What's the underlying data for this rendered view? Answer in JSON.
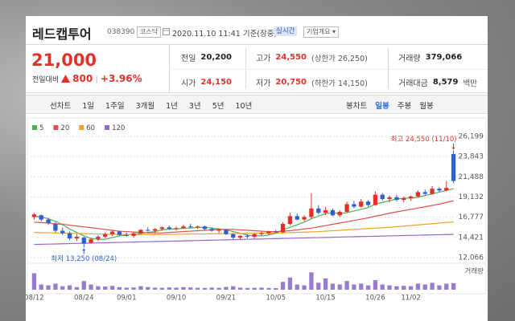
{
  "header": {
    "name": "레드캡투어",
    "code": "038390",
    "market": "코스닥",
    "datetime": "2020.11.10 11:41",
    "basis": "기준(장중)",
    "realtime": "실시간",
    "profile": "기업개요"
  },
  "quote": {
    "price": "21,000",
    "change_label": "전일대비",
    "change": "800",
    "rate": "+3.96%"
  },
  "stats": {
    "rows": [
      [
        {
          "label": "전일",
          "value": "20,200"
        },
        {
          "label": "고가",
          "value": "24,550",
          "note": "(상한가 26,250)"
        },
        {
          "label": "거래량",
          "value": "379,066"
        }
      ],
      [
        {
          "label": "시가",
          "value": "24,150"
        },
        {
          "label": "저가",
          "value": "20,750",
          "note": "(하한가 14,150)"
        },
        {
          "label": "거래대금",
          "value": "8,579",
          "unit": "백만"
        }
      ]
    ]
  },
  "tabs": {
    "left": [
      {
        "label": "선차트"
      },
      {
        "label": "1일"
      },
      {
        "label": "1주일"
      },
      {
        "label": "3개월"
      },
      {
        "label": "1년"
      },
      {
        "label": "3년"
      },
      {
        "label": "5년"
      },
      {
        "label": "10년"
      }
    ],
    "right": [
      {
        "label": "봉차트"
      },
      {
        "label": "일봉",
        "active": true
      },
      {
        "label": "주봉"
      },
      {
        "label": "월봉"
      }
    ]
  },
  "chart_data": {
    "type": "candlestick",
    "categories": [
      "08/12",
      null,
      null,
      null,
      null,
      null,
      null,
      "08/24",
      null,
      null,
      null,
      null,
      null,
      "09/01",
      null,
      null,
      null,
      null,
      null,
      null,
      "09/10",
      null,
      null,
      null,
      null,
      null,
      null,
      "09/21",
      null,
      null,
      null,
      null,
      null,
      null,
      "10/05",
      null,
      null,
      null,
      null,
      null,
      null,
      "10/15",
      null,
      null,
      null,
      null,
      null,
      null,
      "10/26",
      null,
      null,
      null,
      null,
      "11/02",
      null,
      null,
      null,
      null,
      null,
      null
    ],
    "open": [
      16800,
      17000,
      16500,
      16000,
      15200,
      14900,
      14300,
      14400,
      13800,
      14200,
      14500,
      14800,
      15100,
      14700,
      14600,
      14900,
      15300,
      15200,
      15400,
      15600,
      15400,
      15500,
      15700,
      15600,
      15700,
      15400,
      15200,
      15300,
      14800,
      14400,
      14600,
      14500,
      14800,
      14900,
      15100,
      15000,
      16000,
      16900,
      16500,
      16800,
      17800,
      17300,
      17600,
      17000,
      17400,
      18300,
      18000,
      18600,
      18200,
      19400,
      18900,
      19100,
      18800,
      19000,
      19200,
      19700,
      19500,
      20100,
      19900,
      24150
    ],
    "high": [
      17300,
      17100,
      16700,
      16200,
      15600,
      15100,
      14800,
      14500,
      14400,
      14700,
      15000,
      15300,
      15200,
      15000,
      15000,
      15400,
      15600,
      15500,
      15700,
      15800,
      15700,
      15900,
      16000,
      15800,
      15800,
      15600,
      15500,
      15400,
      14900,
      14700,
      14800,
      14900,
      15100,
      15200,
      15300,
      16200,
      17300,
      17200,
      17000,
      19600,
      18200,
      18000,
      17800,
      17600,
      18600,
      18700,
      18900,
      18800,
      19800,
      19600,
      19300,
      19400,
      19200,
      19300,
      19900,
      20000,
      20400,
      20300,
      21000,
      24550
    ],
    "low": [
      16500,
      16300,
      15900,
      15000,
      14700,
      14100,
      14000,
      13250,
      13700,
      14000,
      14300,
      14600,
      14600,
      14500,
      14400,
      14800,
      15100,
      14900,
      15200,
      15300,
      15200,
      15400,
      15500,
      15400,
      15300,
      15100,
      14900,
      14700,
      14200,
      14200,
      14300,
      14300,
      14600,
      14700,
      14900,
      15000,
      15800,
      16400,
      16300,
      16600,
      17100,
      17000,
      16900,
      16800,
      17300,
      17800,
      17900,
      18000,
      18100,
      18700,
      18500,
      18600,
      18500,
      18700,
      19100,
      19300,
      19400,
      19700,
      19800,
      20750
    ],
    "close": [
      17100,
      16500,
      16100,
      15200,
      14900,
      14300,
      14500,
      13700,
      14200,
      14500,
      14800,
      15100,
      14700,
      14600,
      14900,
      15300,
      15200,
      15400,
      15600,
      15400,
      15500,
      15700,
      15600,
      15700,
      15400,
      15200,
      15300,
      14800,
      14400,
      14600,
      14500,
      14800,
      14900,
      15100,
      15000,
      16000,
      16900,
      16500,
      16800,
      17800,
      17300,
      17600,
      17000,
      17400,
      18300,
      18000,
      18600,
      18200,
      19400,
      18900,
      19100,
      18800,
      19000,
      19200,
      19700,
      19500,
      20100,
      19900,
      20200,
      21000
    ],
    "up_color": "#e0312b",
    "down_color": "#3060d0",
    "series": [
      {
        "name": "5",
        "color": "#4caf50",
        "values": [
          16900,
          16800,
          16600,
          16300,
          15900,
          15400,
          15000,
          14600,
          14300,
          14200,
          14200,
          14400,
          14600,
          14700,
          14800,
          14900,
          15000,
          15100,
          15300,
          15400,
          15400,
          15500,
          15500,
          15600,
          15600,
          15500,
          15400,
          15300,
          15100,
          14900,
          14700,
          14600,
          14600,
          14700,
          14900,
          15300,
          15600,
          15900,
          16200,
          16600,
          16900,
          17200,
          17300,
          17200,
          17300,
          17500,
          17700,
          17900,
          18300,
          18500,
          18700,
          18900,
          19000,
          19000,
          19100,
          19300,
          19500,
          19700,
          19900,
          20100
        ]
      },
      {
        "name": "20",
        "color": "#e05050",
        "values": [
          16200,
          16150,
          16100,
          16000,
          15950,
          15850,
          15750,
          15650,
          15550,
          15450,
          15350,
          15250,
          15150,
          15100,
          15050,
          15000,
          14950,
          14950,
          14950,
          15000,
          15050,
          15100,
          15150,
          15200,
          15250,
          15300,
          15350,
          15350,
          15350,
          15300,
          15250,
          15200,
          15150,
          15100,
          15100,
          15150,
          15200,
          15300,
          15400,
          15500,
          15650,
          15800,
          15950,
          16100,
          16250,
          16400,
          16550,
          16700,
          16900,
          17050,
          17250,
          17400,
          17550,
          17700,
          17850,
          18000,
          18150,
          18300,
          18500,
          18700
        ]
      },
      {
        "name": "60",
        "color": "#f0a030",
        "values": [
          15000,
          14980,
          14960,
          14940,
          14920,
          14900,
          14880,
          14860,
          14840,
          14820,
          14800,
          14790,
          14780,
          14770,
          14760,
          14760,
          14760,
          14760,
          14770,
          14780,
          14790,
          14800,
          14810,
          14820,
          14830,
          14840,
          14850,
          14860,
          14870,
          14880,
          14890,
          14900,
          14910,
          14920,
          14930,
          14950,
          14980,
          15010,
          15040,
          15070,
          15100,
          15150,
          15200,
          15250,
          15300,
          15350,
          15400,
          15450,
          15500,
          15550,
          15600,
          15670,
          15740,
          15810,
          15880,
          15950,
          16020,
          16090,
          16160,
          16230
        ]
      },
      {
        "name": "120",
        "color": "#9966cc",
        "values": [
          13600,
          13620,
          13640,
          13660,
          13680,
          13700,
          13720,
          13740,
          13760,
          13780,
          13800,
          13820,
          13840,
          13860,
          13880,
          13900,
          13920,
          13940,
          13960,
          13980,
          14000,
          14020,
          14040,
          14060,
          14080,
          14100,
          14120,
          14140,
          14160,
          14180,
          14200,
          14220,
          14240,
          14260,
          14280,
          14300,
          14320,
          14340,
          14360,
          14380,
          14400,
          14420,
          14440,
          14460,
          14480,
          14500,
          14520,
          14540,
          14560,
          14580,
          14600,
          14620,
          14640,
          14660,
          14680,
          14700,
          14720,
          14740,
          14760,
          14780
        ]
      }
    ],
    "ylim": [
      12066,
      26199
    ],
    "yticks": [
      {
        "value": 26199,
        "label": "26,199"
      },
      {
        "value": 23843,
        "label": "23,843"
      },
      {
        "value": 21488,
        "label": "21,488"
      },
      {
        "value": 19132,
        "label": "19,132"
      },
      {
        "value": 16777,
        "label": "16,777"
      },
      {
        "value": 14421,
        "label": "14,421"
      },
      {
        "value": 12066,
        "label": "12,066"
      }
    ],
    "grid": true,
    "annotations": {
      "max": "최고 24,550 (11/10)",
      "min": "최저 13,250 (08/24)"
    },
    "volume": {
      "label": "거래량",
      "color": "#9a7bd0",
      "ylim": [
        0,
        1200000
      ],
      "values": [
        950000,
        300000,
        250000,
        350000,
        200000,
        250000,
        150000,
        500000,
        300000,
        200000,
        180000,
        220000,
        150000,
        120000,
        130000,
        200000,
        150000,
        120000,
        110000,
        130000,
        120000,
        150000,
        130000,
        110000,
        100000,
        120000,
        110000,
        160000,
        200000,
        120000,
        100000,
        110000,
        120000,
        100000,
        90000,
        450000,
        700000,
        300000,
        250000,
        1000000,
        400000,
        650000,
        350000,
        300000,
        500000,
        300000,
        350000,
        250000,
        550000,
        300000,
        250000,
        200000,
        220000,
        200000,
        350000,
        300000,
        400000,
        250000,
        350000,
        379066
      ]
    }
  }
}
